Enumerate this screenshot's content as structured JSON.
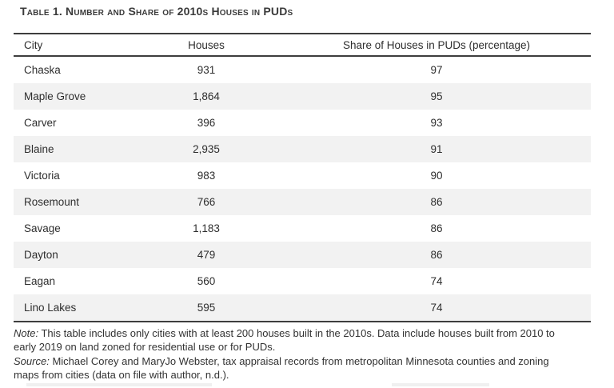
{
  "title": "Table 1. Number and Share of 2010s Houses in PUDs",
  "table": {
    "columns": [
      "City",
      "Houses",
      "Share of Houses in PUDs (percentage)"
    ],
    "rows": [
      {
        "city": "Chaska",
        "houses": "931",
        "share": "97"
      },
      {
        "city": "Maple Grove",
        "houses": "1,864",
        "share": "95"
      },
      {
        "city": "Carver",
        "houses": "396",
        "share": "93"
      },
      {
        "city": "Blaine",
        "houses": "2,935",
        "share": "91"
      },
      {
        "city": "Victoria",
        "houses": "983",
        "share": "90"
      },
      {
        "city": "Rosemount",
        "houses": "766",
        "share": "86"
      },
      {
        "city": "Savage",
        "houses": "1,183",
        "share": "86"
      },
      {
        "city": "Dayton",
        "houses": "479",
        "share": "86"
      },
      {
        "city": "Eagan",
        "houses": "560",
        "share": "74"
      },
      {
        "city": "Lino Lakes",
        "houses": "595",
        "share": "74"
      }
    ]
  },
  "footnotes": {
    "note_label": "Note:",
    "note_line1": "This table includes only cities with at least 200 houses built in the 2010s. Data include houses built from 2010 to",
    "note_line2": "early 2019 on land zoned for residential use or for PUDs.",
    "source_label": "Source:",
    "source_line1": "Michael Corey and MaryJo Webster, tax appraisal records from metropolitan Minnesota counties and zoning",
    "source_line2": "maps from cities (data on file with author, n.d.)."
  },
  "colors": {
    "stripe": "#f2f2f2",
    "border": "#3e3e3e",
    "text": "#2e2e2e"
  }
}
